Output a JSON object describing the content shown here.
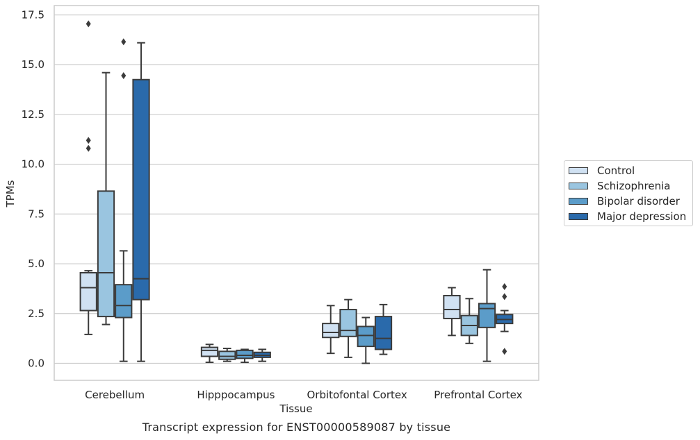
{
  "caption": "Transcript expression for ENST00000589087 by tissue",
  "chart_data": {
    "type": "box",
    "xlabel": "Tissue",
    "ylabel": "TPMs",
    "ylim": [
      -0.8,
      17.8
    ],
    "yticks": [
      0.0,
      2.5,
      5.0,
      7.5,
      10.0,
      12.5,
      15.0,
      17.5
    ],
    "ytick_labels": [
      "0.0",
      "2.5",
      "5.0",
      "7.5",
      "10.0",
      "12.5",
      "15.0",
      "17.5"
    ],
    "grid": "horizontal",
    "legend_position": "right",
    "categories": [
      "Cerebellum",
      "Hipppocampus",
      "Orbitofontal Cortex",
      "Prefrontal Cortex"
    ],
    "series": [
      {
        "name": "Control",
        "color": "#d0e1f2",
        "boxes": [
          {
            "whislo": 1.45,
            "q1": 2.65,
            "med": 3.8,
            "q3": 4.55,
            "whishi": 4.65,
            "fliers": [
              10.8,
              11.2,
              17.05
            ]
          },
          {
            "whislo": 0.05,
            "q1": 0.35,
            "med": 0.65,
            "q3": 0.8,
            "whishi": 0.95,
            "fliers": []
          },
          {
            "whislo": 0.5,
            "q1": 1.3,
            "med": 1.55,
            "q3": 2.0,
            "whishi": 2.9,
            "fliers": []
          },
          {
            "whislo": 1.4,
            "q1": 2.25,
            "med": 2.7,
            "q3": 3.4,
            "whishi": 3.8,
            "fliers": []
          }
        ]
      },
      {
        "name": "Schizophrenia",
        "color": "#9ac5e0",
        "boxes": [
          {
            "whislo": 1.95,
            "q1": 2.35,
            "med": 4.55,
            "q3": 8.65,
            "whishi": 14.6,
            "fliers": []
          },
          {
            "whislo": 0.1,
            "q1": 0.2,
            "med": 0.35,
            "q3": 0.6,
            "whishi": 0.75,
            "fliers": []
          },
          {
            "whislo": 0.3,
            "q1": 1.35,
            "med": 1.65,
            "q3": 2.7,
            "whishi": 3.2,
            "fliers": []
          },
          {
            "whislo": 1.0,
            "q1": 1.4,
            "med": 1.9,
            "q3": 2.4,
            "whishi": 3.25,
            "fliers": []
          }
        ]
      },
      {
        "name": "Bipolar disorder",
        "color": "#5b9cc9",
        "boxes": [
          {
            "whislo": 0.1,
            "q1": 2.3,
            "med": 2.9,
            "q3": 3.95,
            "whishi": 5.65,
            "fliers": [
              14.45,
              16.15
            ]
          },
          {
            "whislo": 0.05,
            "q1": 0.25,
            "med": 0.4,
            "q3": 0.65,
            "whishi": 0.7,
            "fliers": []
          },
          {
            "whislo": 0.0,
            "q1": 0.85,
            "med": 1.4,
            "q3": 1.85,
            "whishi": 2.3,
            "fliers": []
          },
          {
            "whislo": 0.1,
            "q1": 1.8,
            "med": 2.75,
            "q3": 3.0,
            "whishi": 4.7,
            "fliers": []
          }
        ]
      },
      {
        "name": "Major depression",
        "color": "#2a6aab",
        "boxes": [
          {
            "whislo": 0.1,
            "q1": 3.2,
            "med": 4.25,
            "q3": 14.25,
            "whishi": 16.1,
            "fliers": []
          },
          {
            "whislo": 0.1,
            "q1": 0.3,
            "med": 0.4,
            "q3": 0.55,
            "whishi": 0.7,
            "fliers": []
          },
          {
            "whislo": 0.45,
            "q1": 0.7,
            "med": 1.25,
            "q3": 2.35,
            "whishi": 2.95,
            "fliers": []
          },
          {
            "whislo": 1.6,
            "q1": 2.0,
            "med": 2.2,
            "q3": 2.45,
            "whishi": 2.65,
            "fliers": [
              0.6,
              3.35,
              3.85
            ]
          }
        ]
      }
    ]
  }
}
